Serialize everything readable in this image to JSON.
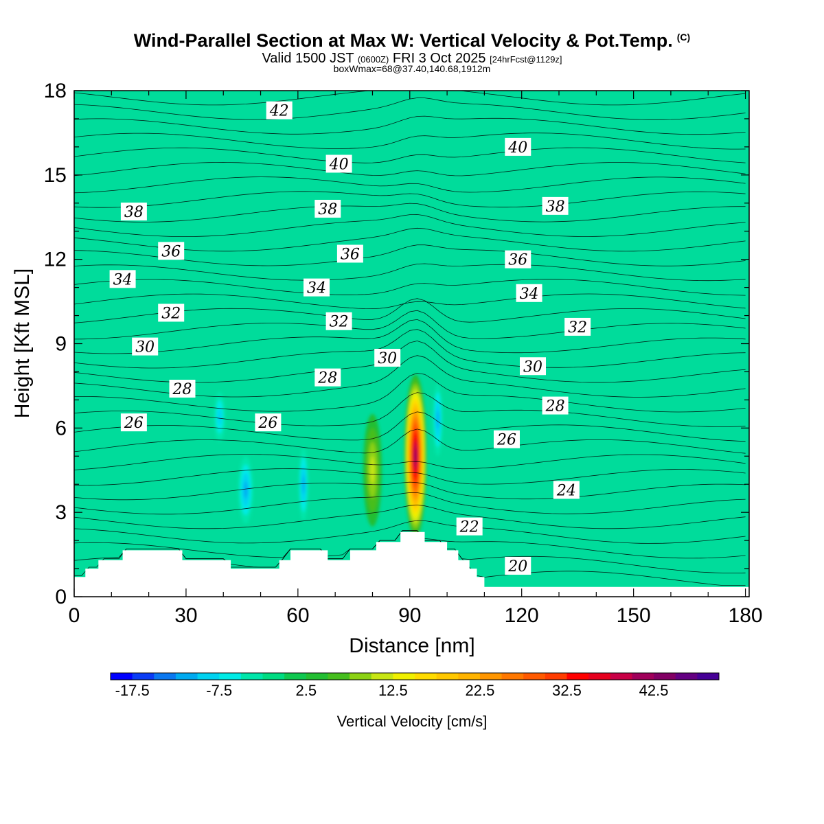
{
  "header": {
    "title": "Wind-Parallel Section at Max W: Vertical Velocity & Pot.Temp.",
    "copyright": "(C)",
    "valid_prefix": "Valid 1500 JST",
    "valid_utc": "(0600Z)",
    "valid_date": "FRI 3 Oct 2025",
    "forecast": "[24hrFcst@1129z]",
    "box_info": "boxWmax=68@37.40,140.68,1912m"
  },
  "chart_data": {
    "type": "heatmap",
    "title": "Wind-Parallel Section at Max W: Vertical Velocity & Pot.Temp.",
    "xlabel": "Distance [nm]",
    "ylabel": "Height [Kft MSL]",
    "xlim": [
      0,
      181
    ],
    "ylim": [
      0,
      18
    ],
    "x_ticks": [
      0,
      30,
      60,
      90,
      120,
      150,
      180
    ],
    "y_ticks": [
      0,
      3,
      6,
      9,
      12,
      15,
      18
    ],
    "fill_variable": "Vertical Velocity [cm/s]",
    "contour_variable": "Potential Temperature (C)",
    "colorbar": {
      "label": "Vertical Velocity [cm/s]",
      "levels": [
        -20,
        -17.5,
        -15,
        -12.5,
        -10,
        -7.5,
        -5,
        -2.5,
        0,
        2.5,
        5,
        7.5,
        10,
        12.5,
        15,
        17.5,
        20,
        22.5,
        25,
        27.5,
        30,
        32.5,
        35,
        37.5,
        40,
        42.5,
        45,
        47.5,
        50
      ],
      "tick_labels": [
        "-17.5",
        "-7.5",
        "2.5",
        "12.5",
        "22.5",
        "32.5",
        "42.5"
      ],
      "tick_values": [
        -17.5,
        -7.5,
        2.5,
        12.5,
        22.5,
        32.5,
        42.5
      ],
      "colors": [
        "#0000ff",
        "#0a3cf5",
        "#0a78f0",
        "#00aaf0",
        "#00d2f0",
        "#00ebe6",
        "#00e6aa",
        "#00dc82",
        "#0fc850",
        "#23be32",
        "#46be1e",
        "#8cd214",
        "#c8e614",
        "#f0f000",
        "#ffdc00",
        "#ffc800",
        "#ffb400",
        "#ff9600",
        "#ff7800",
        "#ff5a00",
        "#ff3c00",
        "#ff0000",
        "#e6001e",
        "#c80046",
        "#a0005a",
        "#820064",
        "#640082",
        "#460096"
      ]
    },
    "theta_contour_labels": [
      {
        "x": 55,
        "y": 17.3,
        "value": "42"
      },
      {
        "x": 119,
        "y": 16.0,
        "value": "40"
      },
      {
        "x": 71,
        "y": 15.4,
        "value": "40"
      },
      {
        "x": 16,
        "y": 13.7,
        "value": "38"
      },
      {
        "x": 68,
        "y": 13.8,
        "value": "38"
      },
      {
        "x": 129,
        "y": 13.9,
        "value": "38"
      },
      {
        "x": 26,
        "y": 12.3,
        "value": "36"
      },
      {
        "x": 74,
        "y": 12.2,
        "value": "36"
      },
      {
        "x": 119,
        "y": 12.0,
        "value": "36"
      },
      {
        "x": 13,
        "y": 11.3,
        "value": "34"
      },
      {
        "x": 65,
        "y": 11.0,
        "value": "34"
      },
      {
        "x": 122,
        "y": 10.8,
        "value": "34"
      },
      {
        "x": 26,
        "y": 10.1,
        "value": "32"
      },
      {
        "x": 71,
        "y": 9.8,
        "value": "32"
      },
      {
        "x": 135,
        "y": 9.6,
        "value": "32"
      },
      {
        "x": 19,
        "y": 8.9,
        "value": "30"
      },
      {
        "x": 84,
        "y": 8.5,
        "value": "30"
      },
      {
        "x": 123,
        "y": 8.2,
        "value": "30"
      },
      {
        "x": 29,
        "y": 7.4,
        "value": "28"
      },
      {
        "x": 68,
        "y": 7.8,
        "value": "28"
      },
      {
        "x": 129,
        "y": 6.8,
        "value": "28"
      },
      {
        "x": 16,
        "y": 6.2,
        "value": "26"
      },
      {
        "x": 52,
        "y": 6.2,
        "value": "26"
      },
      {
        "x": 116,
        "y": 5.6,
        "value": "26"
      },
      {
        "x": 132,
        "y": 3.8,
        "value": "24"
      },
      {
        "x": 106,
        "y": 2.5,
        "value": "22"
      },
      {
        "x": 119,
        "y": 1.1,
        "value": "20"
      }
    ],
    "terrain": [
      [
        0,
        0.7
      ],
      [
        3,
        0.7
      ],
      [
        3,
        1.0
      ],
      [
        6.5,
        1.0
      ],
      [
        6.5,
        1.3
      ],
      [
        13,
        1.3
      ],
      [
        13,
        1.65
      ],
      [
        29,
        1.65
      ],
      [
        29,
        1.3
      ],
      [
        42,
        1.3
      ],
      [
        42,
        1.0
      ],
      [
        55,
        1.0
      ],
      [
        55,
        1.3
      ],
      [
        58,
        1.3
      ],
      [
        58,
        1.65
      ],
      [
        68,
        1.65
      ],
      [
        68,
        1.3
      ],
      [
        74,
        1.3
      ],
      [
        74,
        1.65
      ],
      [
        81,
        1.65
      ],
      [
        81,
        1.95
      ],
      [
        87.5,
        1.95
      ],
      [
        87.5,
        2.3
      ],
      [
        94,
        2.3
      ],
      [
        94,
        1.95
      ],
      [
        100,
        1.95
      ],
      [
        100,
        1.65
      ],
      [
        103,
        1.65
      ],
      [
        103,
        1.3
      ],
      [
        106,
        1.3
      ],
      [
        106,
        1.0
      ],
      [
        108,
        1.0
      ],
      [
        108,
        0.7
      ],
      [
        110,
        0.7
      ],
      [
        110,
        0.35
      ],
      [
        181,
        0.35
      ]
    ],
    "velocity_features": [
      {
        "x": 91.5,
        "y": 5.0,
        "rx": 3.0,
        "ry": 2.9,
        "value": 44
      },
      {
        "x": 97.5,
        "y": 6.3,
        "rx": 1.3,
        "ry": 1.3,
        "value": -12
      },
      {
        "x": 80,
        "y": 4.5,
        "rx": 2.5,
        "ry": 2.0,
        "value": 10
      },
      {
        "x": 46,
        "y": 3.8,
        "rx": 2.0,
        "ry": 1.2,
        "value": -10
      },
      {
        "x": 61.5,
        "y": 4.0,
        "rx": 1.3,
        "ry": 1.3,
        "value": -10
      },
      {
        "x": 39,
        "y": 6.4,
        "rx": 1.5,
        "ry": 0.9,
        "value": -8
      }
    ]
  }
}
